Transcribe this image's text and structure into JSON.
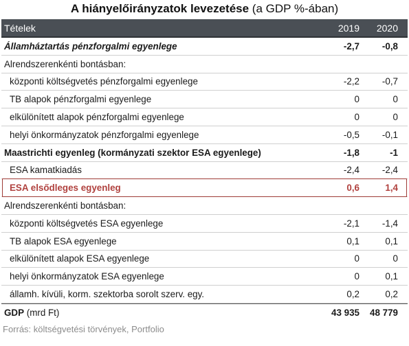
{
  "title": {
    "bold": "A hiányelőirányzatok levezetése",
    "normal": "(a GDP %-ában)"
  },
  "header": {
    "label": "Tételek",
    "year1": "2019",
    "year2": "2020"
  },
  "rows": [
    {
      "label": "Államháztartás pénzforgalmi egyenlege",
      "v2019": "-2,7",
      "v2020": "-0,8",
      "style": "bold-italic"
    },
    {
      "label": "Alrendszerenkénti bontásban:",
      "v2019": "",
      "v2020": "",
      "style": "plain"
    },
    {
      "label": "központi költségvetés pénzforgalmi egyenlege",
      "v2019": "-2,2",
      "v2020": "-0,7",
      "style": "indent"
    },
    {
      "label": "TB alapok pénzforgalmi egyenlege",
      "v2019": "0",
      "v2020": "0",
      "style": "indent"
    },
    {
      "label": "elkülönített alapok pénzforgalmi egyenlege",
      "v2019": "0",
      "v2020": "0",
      "style": "indent"
    },
    {
      "label": "helyi önkormányzatok pénzforgalmi egyenlege",
      "v2019": "-0,5",
      "v2020": "-0,1",
      "style": "indent"
    },
    {
      "label": "Maastrichti egyenleg (kormányzati szektor ESA egyenlege)",
      "v2019": "-1,8",
      "v2020": "-1",
      "style": "bold"
    },
    {
      "label": "ESA kamatkiadás",
      "v2019": "-2,4",
      "v2020": "-2,4",
      "style": "indent"
    },
    {
      "label": "ESA elsődleges egyenleg",
      "v2019": "0,6",
      "v2020": "1,4",
      "style": "highlight"
    },
    {
      "label": "Alrendszerenkénti bontásban:",
      "v2019": "",
      "v2020": "",
      "style": "plain"
    },
    {
      "label": "központi költségvetés ESA egyenlege",
      "v2019": "-2,1",
      "v2020": "-1,4",
      "style": "indent"
    },
    {
      "label": "TB alapok ESA egyenlege",
      "v2019": "0,1",
      "v2020": "0,1",
      "style": "indent"
    },
    {
      "label": "elkülönített alapok ESA egyenlege",
      "v2019": "0",
      "v2020": "0",
      "style": "indent"
    },
    {
      "label": "helyi önkormányzatok ESA egyenlege",
      "v2019": "0",
      "v2020": "0,1",
      "style": "indent"
    },
    {
      "label": "államh. kívüli, korm. szektorba sorolt szerv. egy.",
      "v2019": "0,2",
      "v2020": "0,2",
      "style": "indent"
    }
  ],
  "total": {
    "label_bold": "GDP",
    "label_normal": "(mrd Ft)",
    "v2019": "43 935",
    "v2020": "48 779"
  },
  "source": "Forrás: költségvetési törvények, Portfolio",
  "colors": {
    "header_bg": "#4a4f55",
    "highlight": "#b0413e"
  }
}
